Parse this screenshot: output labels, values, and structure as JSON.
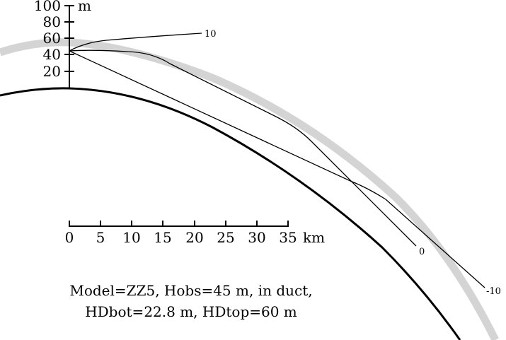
{
  "diagram": {
    "vertical_axis": {
      "unit": "m",
      "ticks": [
        "100",
        "80",
        "60",
        "40",
        "20"
      ]
    },
    "horizontal_axis": {
      "unit": "km",
      "ticks": [
        "0",
        "5",
        "10",
        "15",
        "20",
        "25",
        "30",
        "35"
      ]
    },
    "ray_labels": [
      "10",
      "0",
      "-10"
    ],
    "caption": {
      "line1": "Model=ZZ5, Hobs=45 m, in duct,",
      "line2": "HDbot=22.8 m, HDtop=60 m"
    },
    "colors": {
      "ink": "#000000",
      "duct_band": "#d4d4d4"
    }
  }
}
